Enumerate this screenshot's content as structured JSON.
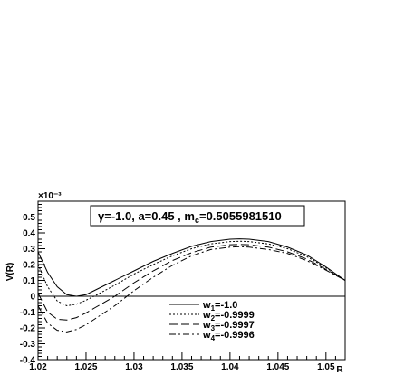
{
  "chart_data": {
    "type": "line",
    "title_parts": {
      "lead": "γ=-1.0, a=0.45 , m",
      "sub": "c",
      "tail": "=0.5055981510"
    },
    "xlabel": "R",
    "ylabel": "V(R)",
    "y_exponent_label": "×10⁻³",
    "xlim": [
      1.02,
      1.052
    ],
    "ylim": [
      -0.4,
      0.6
    ],
    "x_ticks": [
      1.02,
      1.025,
      1.03,
      1.035,
      1.04,
      1.045,
      1.05
    ],
    "x_tick_labels": [
      "1.02",
      "1.025",
      "1.03",
      "1.035",
      "1.04",
      "1.045",
      "1.05"
    ],
    "y_ticks": [
      -0.4,
      -0.3,
      -0.2,
      -0.1,
      0,
      0.1,
      0.2,
      0.3,
      0.4,
      0.5
    ],
    "y_tick_labels": [
      "-0.4",
      "-0.3",
      "-0.2",
      "-0.1",
      "0",
      "0.1",
      "0.2",
      "0.3",
      "0.4",
      "0.5"
    ],
    "zero_line": true,
    "legend_position": "bottom-right",
    "series": [
      {
        "name": "w₁=-1.0",
        "legend_parts": {
          "lead": "w",
          "sub": "1",
          "tail": "=-1.0"
        },
        "dash": "",
        "x": [
          1.02,
          1.021,
          1.022,
          1.023,
          1.024,
          1.025,
          1.026,
          1.028,
          1.03,
          1.032,
          1.034,
          1.036,
          1.038,
          1.04,
          1.041,
          1.042,
          1.044,
          1.046,
          1.048,
          1.05,
          1.052
        ],
        "y": [
          0.28,
          0.15,
          0.06,
          0.01,
          0.0,
          0.01,
          0.04,
          0.1,
          0.16,
          0.22,
          0.27,
          0.315,
          0.345,
          0.36,
          0.362,
          0.36,
          0.345,
          0.31,
          0.26,
          0.185,
          0.1
        ]
      },
      {
        "name": "w₂=-0.9999",
        "legend_parts": {
          "lead": "w",
          "sub": "2",
          "tail": "=-0.9999"
        },
        "dash": "2,2",
        "x": [
          1.02,
          1.021,
          1.022,
          1.023,
          1.024,
          1.025,
          1.026,
          1.028,
          1.03,
          1.032,
          1.034,
          1.036,
          1.038,
          1.04,
          1.041,
          1.042,
          1.044,
          1.046,
          1.048,
          1.05,
          1.052
        ],
        "y": [
          0.2,
          0.06,
          -0.03,
          -0.06,
          -0.05,
          -0.025,
          0.005,
          0.07,
          0.14,
          0.2,
          0.255,
          0.3,
          0.33,
          0.345,
          0.347,
          0.345,
          0.33,
          0.3,
          0.25,
          0.18,
          0.1
        ]
      },
      {
        "name": "w₃=-0.9997",
        "legend_parts": {
          "lead": "w",
          "sub": "3",
          "tail": "=-0.9997"
        },
        "dash": "9,4",
        "x": [
          1.02,
          1.021,
          1.022,
          1.023,
          1.024,
          1.025,
          1.026,
          1.028,
          1.03,
          1.032,
          1.034,
          1.036,
          1.038,
          1.04,
          1.041,
          1.042,
          1.044,
          1.046,
          1.048,
          1.05,
          1.052
        ],
        "y": [
          0.02,
          -0.1,
          -0.145,
          -0.15,
          -0.135,
          -0.105,
          -0.07,
          0.0,
          0.085,
          0.16,
          0.225,
          0.275,
          0.31,
          0.325,
          0.327,
          0.325,
          0.31,
          0.28,
          0.235,
          0.17,
          0.1
        ]
      },
      {
        "name": "w₄=-0.9996",
        "legend_parts": {
          "lead": "w",
          "sub": "4",
          "tail": "=-0.9996"
        },
        "dash": "7,3,2,3",
        "x": [
          1.02,
          1.021,
          1.022,
          1.023,
          1.024,
          1.025,
          1.026,
          1.028,
          1.03,
          1.032,
          1.034,
          1.036,
          1.038,
          1.04,
          1.041,
          1.042,
          1.044,
          1.046,
          1.048,
          1.05,
          1.052
        ],
        "y": [
          -0.06,
          -0.17,
          -0.215,
          -0.225,
          -0.21,
          -0.18,
          -0.14,
          -0.06,
          0.035,
          0.12,
          0.195,
          0.255,
          0.295,
          0.31,
          0.313,
          0.31,
          0.295,
          0.27,
          0.225,
          0.165,
          0.1
        ]
      }
    ]
  }
}
